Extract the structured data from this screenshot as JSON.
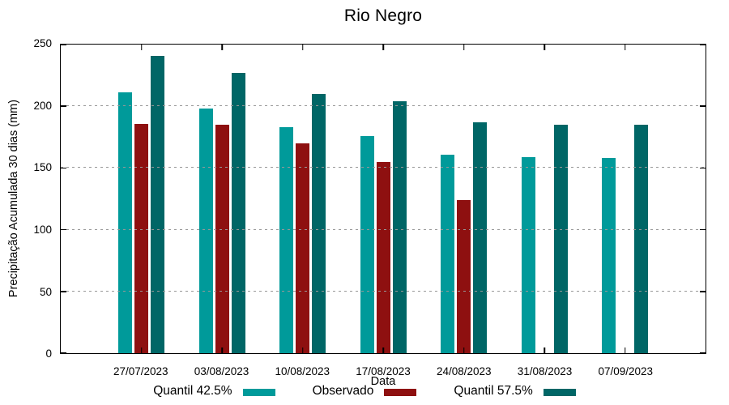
{
  "chart_data": {
    "type": "bar",
    "title": "Rio Negro",
    "xlabel": "Data",
    "ylabel": "Precipitação Acumulada 30 dias (mm)",
    "ylim": [
      0,
      250
    ],
    "yticks": [
      0,
      50,
      100,
      150,
      200,
      250
    ],
    "grid": "horizontal dotted gray lines at 50, 100, 150, 200",
    "legend_position": "below",
    "categories": [
      "27/07/2023",
      "03/08/2023",
      "10/08/2023",
      "17/08/2023",
      "24/08/2023",
      "31/08/2023",
      "07/09/2023"
    ],
    "series": [
      {
        "name": "Quantil 42.5%",
        "color": "#009A9A",
        "values": [
          211,
          198,
          183,
          176,
          161,
          159,
          158
        ]
      },
      {
        "name": "Observado",
        "color": "#8E1010",
        "values": [
          186,
          185,
          170,
          155,
          124,
          null,
          null
        ]
      },
      {
        "name": "Quantil 57.5%",
        "color": "#006666",
        "values": [
          241,
          227,
          210,
          204,
          187,
          185,
          185
        ]
      }
    ]
  },
  "colors": {
    "border": "#000000",
    "gridline": "#979797",
    "background": "#ffffff"
  }
}
